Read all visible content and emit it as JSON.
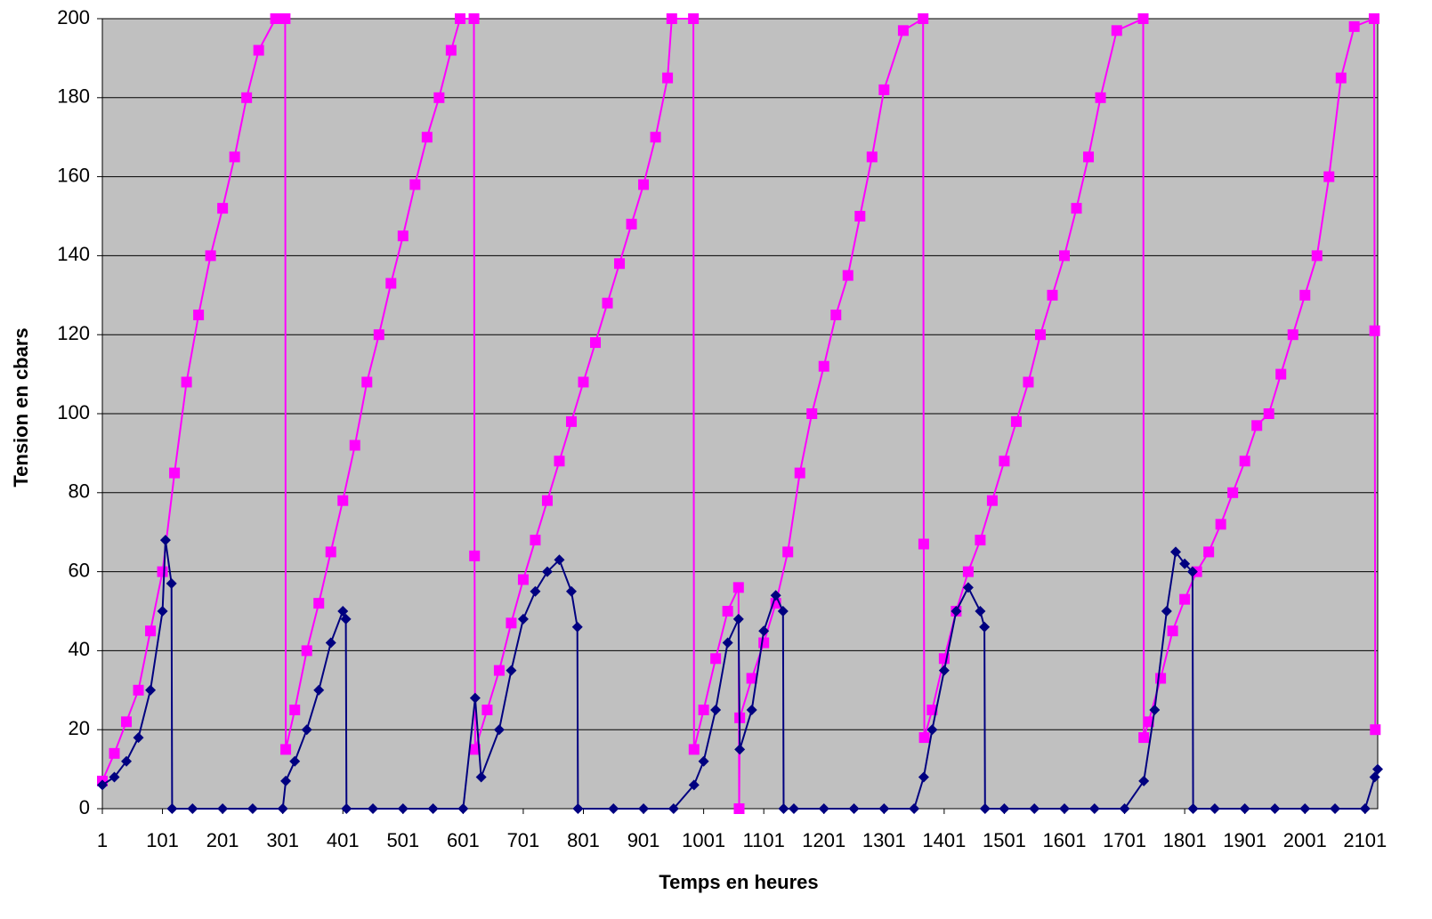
{
  "chart_data": {
    "type": "line",
    "x_label": "Temps en heures",
    "y_label": "Tension en cbars",
    "xlim": [
      1,
      2122
    ],
    "ylim": [
      0,
      200
    ],
    "xticks": [
      1,
      101,
      201,
      301,
      401,
      501,
      601,
      701,
      801,
      901,
      1001,
      1101,
      1201,
      1301,
      1401,
      1501,
      1601,
      1701,
      1801,
      1901,
      2001,
      2101
    ],
    "yticks": [
      0,
      20,
      40,
      60,
      80,
      100,
      120,
      140,
      160,
      180,
      200
    ],
    "grid": true,
    "background": "#c0c0c0",
    "series": [
      {
        "color": "#ff00ff",
        "marker": "square",
        "x": [
          1,
          21,
          41,
          61,
          81,
          101,
          121,
          141,
          161,
          181,
          201,
          221,
          241,
          261,
          289,
          305,
          306,
          321,
          341,
          361,
          381,
          401,
          421,
          441,
          461,
          481,
          501,
          521,
          541,
          561,
          581,
          596,
          619,
          620,
          621,
          641,
          661,
          681,
          701,
          721,
          741,
          761,
          781,
          801,
          821,
          841,
          861,
          881,
          901,
          921,
          941,
          948,
          984,
          985,
          1001,
          1021,
          1041,
          1059,
          1060,
          1061,
          1081,
          1101,
          1121,
          1141,
          1161,
          1181,
          1201,
          1221,
          1241,
          1261,
          1281,
          1301,
          1333,
          1366,
          1367,
          1368,
          1381,
          1401,
          1421,
          1441,
          1461,
          1481,
          1501,
          1521,
          1541,
          1561,
          1581,
          1601,
          1621,
          1641,
          1661,
          1688,
          1732,
          1733,
          1741,
          1761,
          1781,
          1801,
          1821,
          1841,
          1861,
          1881,
          1901,
          1921,
          1941,
          1961,
          1981,
          2001,
          2021,
          2041,
          2061,
          2083,
          2116,
          2117,
          2118
        ],
        "values": [
          7,
          14,
          22,
          30,
          45,
          60,
          85,
          108,
          125,
          140,
          152,
          165,
          180,
          192,
          200,
          200,
          15,
          25,
          40,
          52,
          65,
          78,
          92,
          108,
          120,
          133,
          145,
          158,
          170,
          180,
          192,
          200,
          200,
          64,
          15,
          25,
          35,
          47,
          58,
          68,
          78,
          88,
          98,
          108,
          118,
          128,
          138,
          148,
          158,
          170,
          185,
          200,
          200,
          15,
          25,
          38,
          50,
          56,
          0,
          23,
          33,
          42,
          52,
          65,
          85,
          100,
          112,
          125,
          135,
          150,
          165,
          182,
          197,
          200,
          67,
          18,
          25,
          38,
          50,
          60,
          68,
          78,
          88,
          98,
          108,
          120,
          130,
          140,
          152,
          165,
          180,
          197,
          200,
          18,
          22,
          33,
          45,
          53,
          60,
          65,
          72,
          80,
          88,
          97,
          100,
          110,
          120,
          130,
          140,
          160,
          185,
          198,
          200,
          121,
          20
        ]
      },
      {
        "color": "#000080",
        "marker": "diamond",
        "x": [
          1,
          21,
          41,
          61,
          81,
          101,
          106,
          116,
          117,
          151,
          201,
          251,
          301,
          306,
          321,
          341,
          361,
          381,
          401,
          406,
          407,
          451,
          501,
          551,
          601,
          621,
          631,
          661,
          681,
          701,
          721,
          741,
          761,
          781,
          791,
          792,
          851,
          901,
          951,
          985,
          1001,
          1021,
          1041,
          1059,
          1061,
          1081,
          1101,
          1121,
          1133,
          1134,
          1151,
          1201,
          1251,
          1301,
          1351,
          1367,
          1381,
          1401,
          1421,
          1441,
          1461,
          1468,
          1469,
          1501,
          1551,
          1601,
          1651,
          1701,
          1733,
          1751,
          1771,
          1786,
          1801,
          1814,
          1815,
          1851,
          1901,
          1951,
          2001,
          2051,
          2101,
          2117,
          2122
        ],
        "values": [
          6,
          8,
          12,
          18,
          30,
          50,
          68,
          57,
          0,
          0,
          0,
          0,
          0,
          7,
          12,
          20,
          30,
          42,
          50,
          48,
          0,
          0,
          0,
          0,
          0,
          28,
          8,
          20,
          35,
          48,
          55,
          60,
          63,
          55,
          46,
          0,
          0,
          0,
          0,
          6,
          12,
          25,
          42,
          48,
          15,
          25,
          45,
          54,
          50,
          0,
          0,
          0,
          0,
          0,
          0,
          8,
          20,
          35,
          50,
          56,
          50,
          46,
          0,
          0,
          0,
          0,
          0,
          0,
          7,
          25,
          50,
          65,
          62,
          60,
          0,
          0,
          0,
          0,
          0,
          0,
          0,
          8,
          10
        ]
      }
    ]
  }
}
